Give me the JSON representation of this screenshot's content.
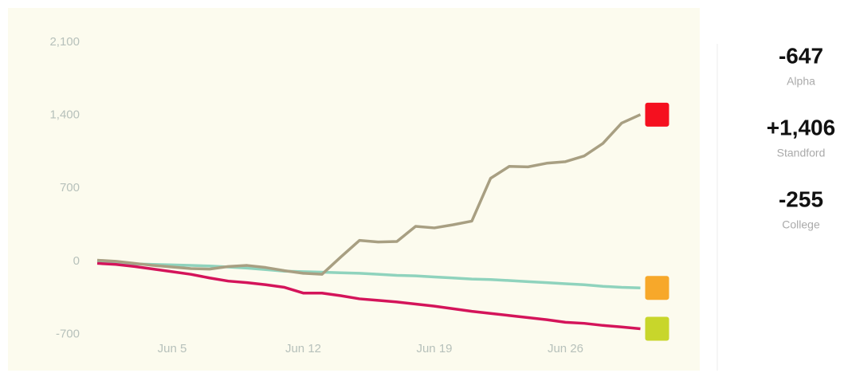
{
  "chart_data": {
    "type": "line",
    "categories": [
      null,
      null,
      null,
      null,
      "Jun 5",
      null,
      null,
      null,
      null,
      null,
      null,
      "Jun 12",
      null,
      null,
      null,
      null,
      null,
      null,
      "Jun 19",
      null,
      null,
      null,
      null,
      null,
      null,
      "Jun 26",
      null,
      null,
      null,
      null
    ],
    "series": [
      {
        "name": "Alpha",
        "color": "#d4145a",
        "values": [
          -20,
          -30,
          -50,
          -75,
          -100,
          -125,
          -160,
          -190,
          -205,
          -225,
          -250,
          -305,
          -305,
          -330,
          -360,
          -375,
          -390,
          -410,
          -430,
          -455,
          -480,
          -500,
          -520,
          -540,
          -560,
          -585,
          -595,
          -615,
          -630,
          -647
        ]
      },
      {
        "name": "Standford",
        "color": "#a89f82",
        "values": [
          10,
          0,
          -20,
          -40,
          -55,
          -70,
          -75,
          -50,
          -40,
          -60,
          -90,
          -115,
          -125,
          40,
          200,
          185,
          190,
          335,
          320,
          350,
          385,
          795,
          910,
          905,
          940,
          955,
          1010,
          1130,
          1325,
          1406
        ]
      },
      {
        "name": "College",
        "color": "#8fd3bd",
        "values": [
          0,
          -15,
          -25,
          -30,
          -35,
          -40,
          -45,
          -55,
          -65,
          -80,
          -95,
          -100,
          -105,
          -110,
          -115,
          -125,
          -135,
          -140,
          -150,
          -160,
          -170,
          -175,
          -185,
          -195,
          -205,
          -215,
          -225,
          -240,
          -250,
          -255
        ]
      }
    ],
    "ylim": [
      -900,
      2100
    ],
    "yticks": [
      -700,
      0,
      700,
      {
        "value": 1400,
        "label": "1,400"
      },
      {
        "value": 2100,
        "label": "2,100"
      }
    ],
    "summary": [
      {
        "label": "-647"
      },
      {
        "label": "+1,406"
      },
      {
        "label": "-255"
      }
    ]
  }
}
